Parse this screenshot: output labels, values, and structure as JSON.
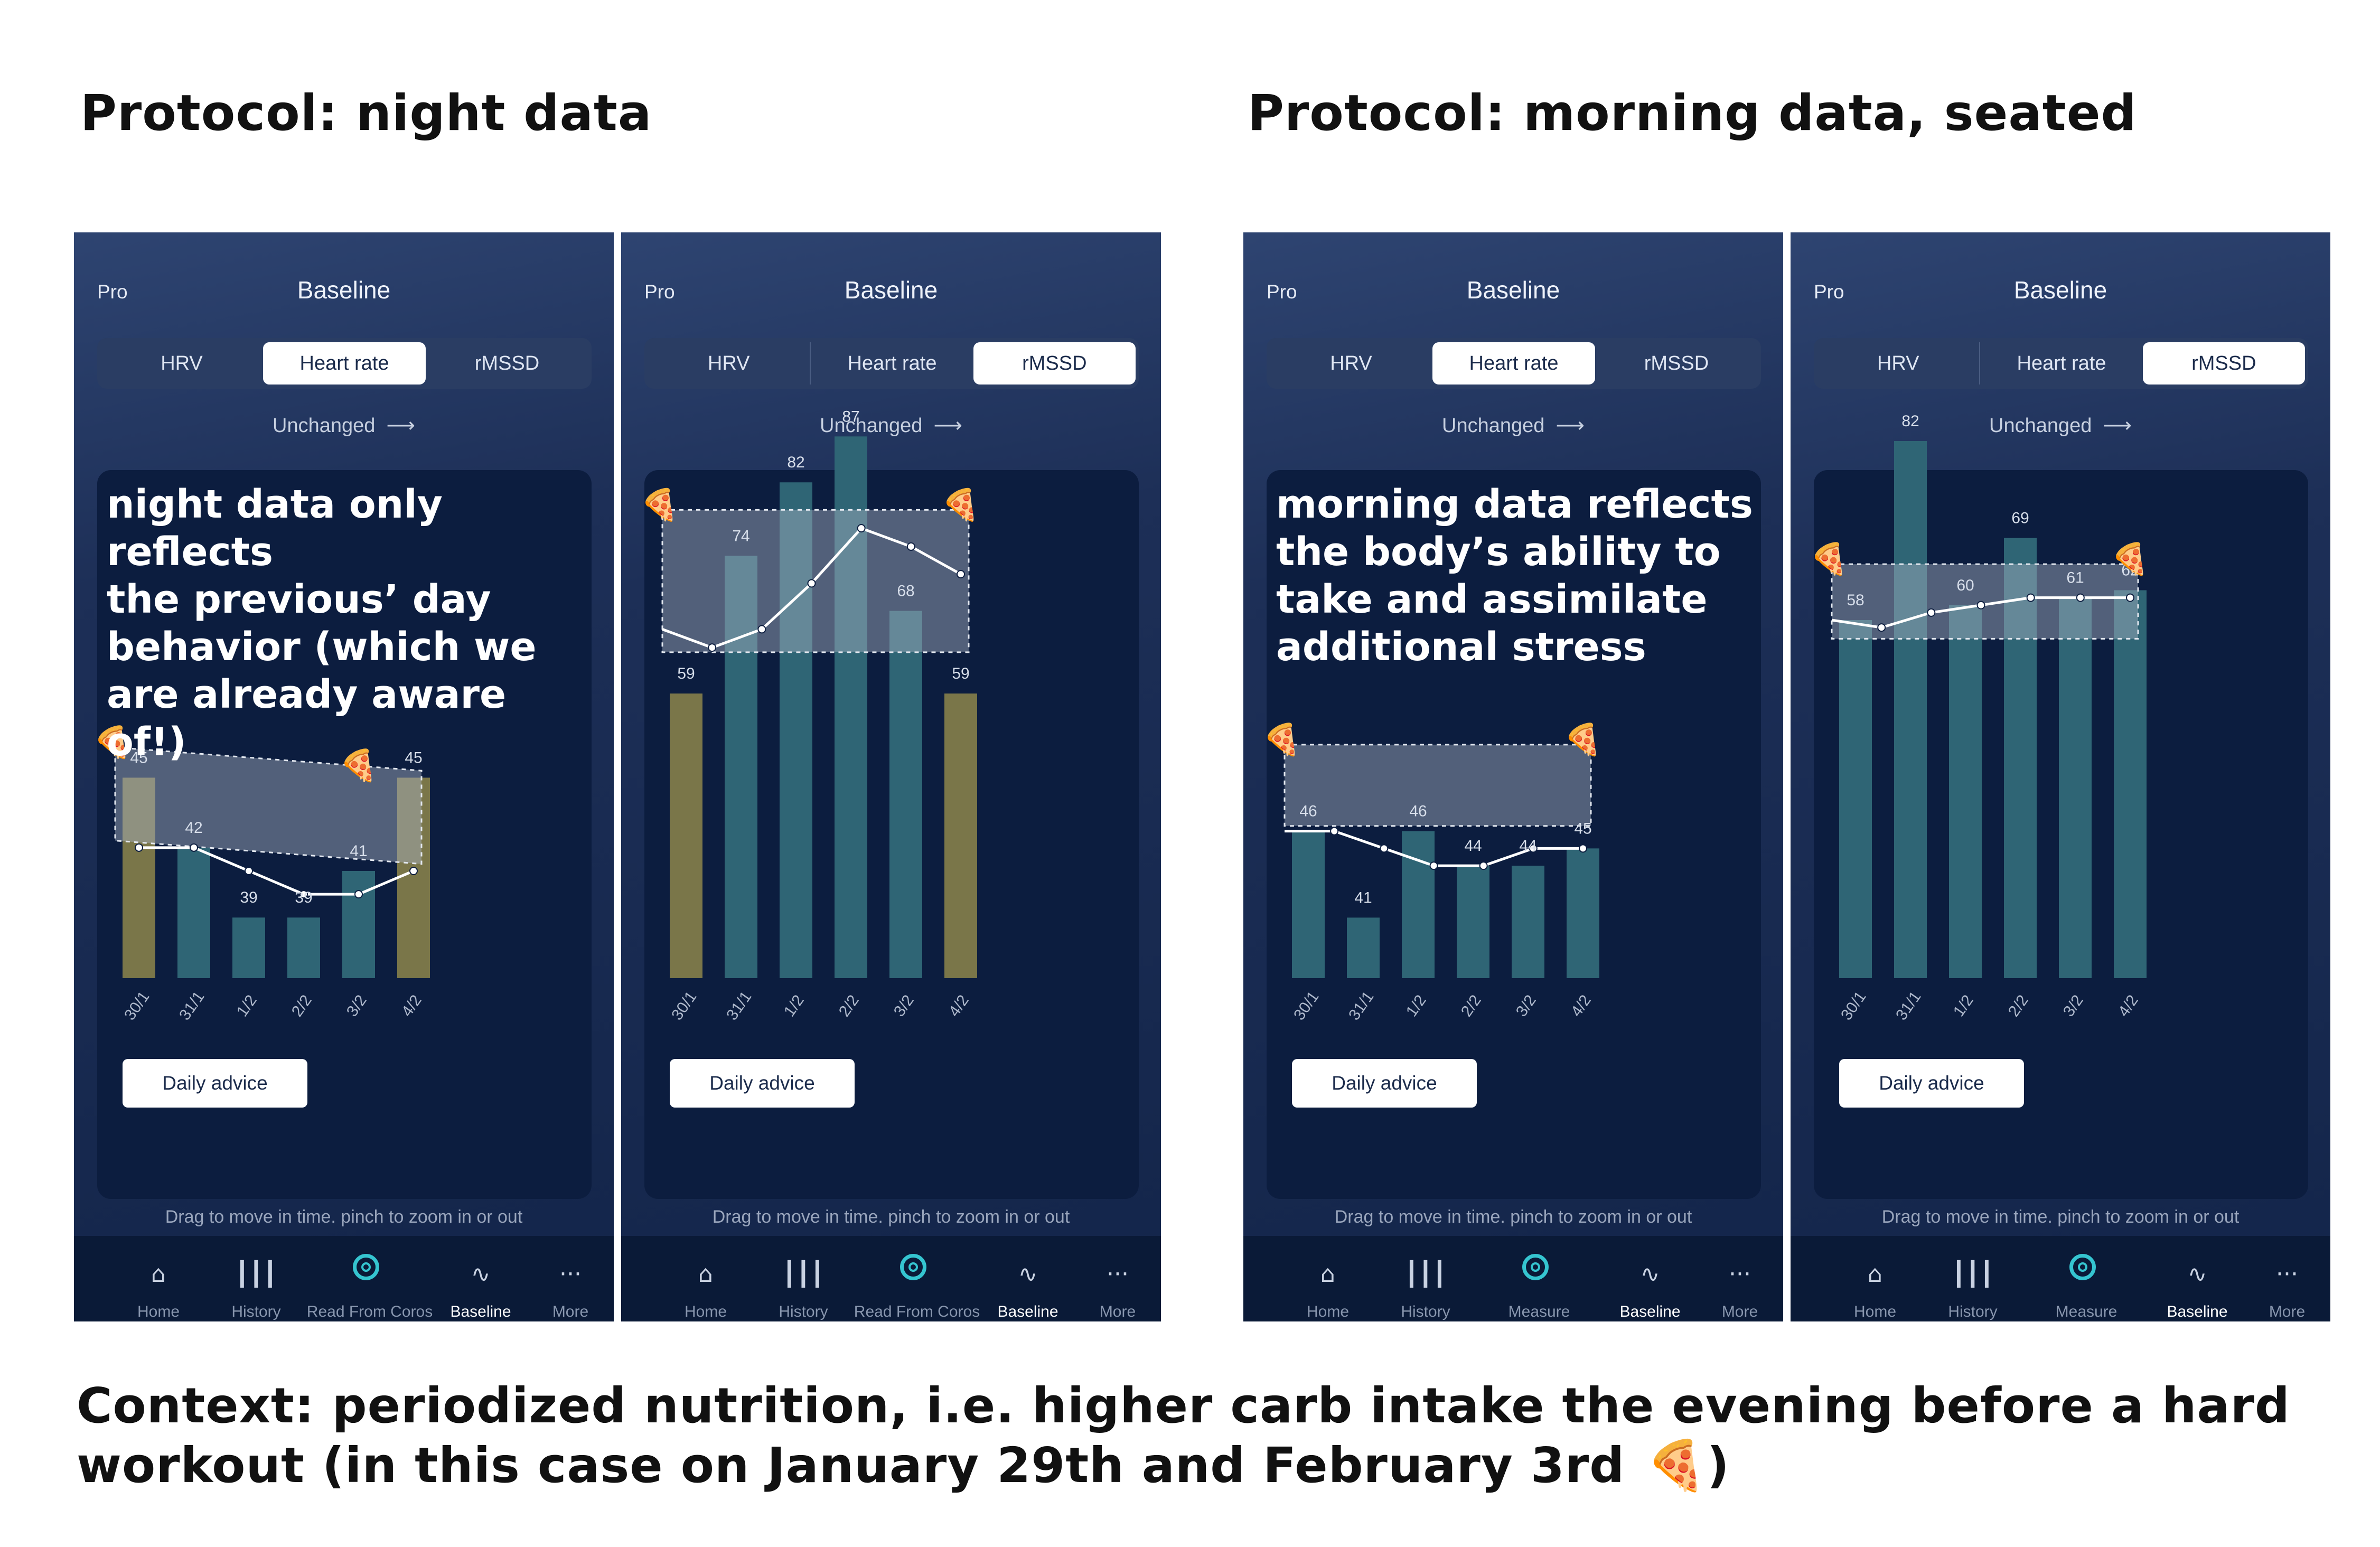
{
  "headings": {
    "left": "Protocol: night data",
    "right": "Protocol: morning data, seated"
  },
  "context": {
    "text": "Context: periodized nutrition, i.e. higher carb intake the evening before a hard workout (in this case on January 29th and February 3rd",
    "icon": "pizza-icon",
    "closing": ")"
  },
  "colors": {
    "background": "#13254a",
    "card": "#0c1d3f",
    "bar_normal": "#2f6575",
    "bar_highlight": "#7a7649",
    "band": "#a9b4c4",
    "accent": "#35c5d0"
  },
  "phones": [
    {
      "pro": "Pro",
      "title": "Baseline",
      "tabs": [
        "HRV",
        "Heart rate",
        "rMSSD"
      ],
      "active_tab": 1,
      "trend": "Unchanged",
      "trend_icon": "arrow-right-icon",
      "overlay": [
        "night data only reflects",
        "the  previous’ day",
        "behavior (which we",
        "are already aware of!)"
      ],
      "advice": "Daily advice",
      "hint": "Drag to move in time. pinch to zoom in or out",
      "nav": [
        "Home",
        "History",
        "Read From Coros",
        "Baseline",
        "More"
      ],
      "active_nav": 3,
      "chart_data": {
        "type": "bar",
        "categories": [
          "30/1",
          "31/1",
          "1/2",
          "2/2",
          "3/2",
          "4/2"
        ],
        "values": [
          45,
          42,
          39,
          39,
          41,
          45
        ],
        "highlight": [
          true,
          false,
          false,
          false,
          false,
          true
        ],
        "value_labels": [
          "45",
          "42",
          "39",
          "39",
          "41",
          "45"
        ],
        "baseline_line": [
          42,
          42,
          41,
          40,
          40,
          41
        ],
        "band_top": [
          46.3,
          45.3
        ],
        "band_bottom": [
          42.3,
          41.3
        ],
        "ylim": [
          36.4,
          62
        ],
        "pizza_markers": [
          0,
          4
        ]
      }
    },
    {
      "pro": "Pro",
      "title": "Baseline",
      "tabs": [
        "HRV",
        "Heart rate",
        "rMSSD"
      ],
      "active_tab": 2,
      "trend": "Unchanged",
      "trend_icon": "arrow-right-icon",
      "overlay": [],
      "advice": "Daily advice",
      "hint": "Drag to move in time. pinch to zoom in or out",
      "nav": [
        "Home",
        "History",
        "Read From Coros",
        "Baseline",
        "More"
      ],
      "active_nav": 3,
      "chart_data": {
        "type": "bar",
        "categories": [
          "30/1",
          "31/1",
          "1/2",
          "2/2",
          "3/2",
          "4/2"
        ],
        "values": [
          59,
          74,
          82,
          87,
          68,
          59
        ],
        "highlight": [
          true,
          false,
          false,
          false,
          false,
          true
        ],
        "value_labels": [
          "59",
          "74",
          "82",
          "87",
          "68",
          "59"
        ],
        "baseline_line": [
          66,
          64,
          66,
          71,
          77,
          75,
          72
        ],
        "band_top": [
          79,
          79
        ],
        "band_bottom": [
          63.5,
          63.5
        ],
        "ylim": [
          28,
          93
        ],
        "pizza_markers": [
          0,
          5
        ]
      }
    },
    {
      "pro": "Pro",
      "title": "Baseline",
      "tabs": [
        "HRV",
        "Heart rate",
        "rMSSD"
      ],
      "active_tab": 1,
      "trend": "Unchanged",
      "trend_icon": "arrow-right-icon",
      "overlay": [
        "morning data reflects",
        "the body’s ability to",
        "take and assimilate",
        "additional stress"
      ],
      "advice": "Daily advice",
      "hint": "Drag to move in time. pinch to zoom in or out",
      "nav": [
        "Home",
        "History",
        "Measure",
        "Baseline",
        "More"
      ],
      "active_nav": 3,
      "chart_data": {
        "type": "bar",
        "categories": [
          "30/1",
          "31/1",
          "1/2",
          "2/2",
          "3/2",
          "4/2"
        ],
        "values": [
          46,
          41,
          46,
          44,
          44,
          45
        ],
        "highlight": [
          false,
          false,
          false,
          false,
          false,
          false
        ],
        "value_labels": [
          "46",
          "41",
          "46",
          "44",
          "44",
          "45"
        ],
        "baseline_line": [
          46,
          46,
          45,
          44,
          44,
          45,
          45
        ],
        "band_top": [
          51,
          51
        ],
        "band_bottom": [
          46.3,
          46.3
        ],
        "ylim": [
          37.5,
          72
        ],
        "pizza_markers": [
          0,
          5
        ]
      }
    },
    {
      "pro": "Pro",
      "title": "Baseline",
      "tabs": [
        "HRV",
        "Heart rate",
        "rMSSD"
      ],
      "active_tab": 2,
      "trend": "Unchanged",
      "trend_icon": "arrow-right-icon",
      "overlay": [],
      "advice": "Daily advice",
      "hint": "Drag to move in time. pinch to zoom in or out",
      "nav": [
        "Home",
        "History",
        "Measure",
        "Baseline",
        "More"
      ],
      "active_nav": 3,
      "chart_data": {
        "type": "bar",
        "categories": [
          "30/1",
          "31/1",
          "1/2",
          "2/2",
          "3/2",
          "4/2"
        ],
        "values": [
          58,
          82,
          60,
          69,
          61,
          62
        ],
        "highlight": [
          false,
          false,
          false,
          false,
          false,
          false
        ],
        "value_labels": [
          "58",
          "82",
          "60",
          "69",
          "61",
          "62"
        ],
        "baseline_line": [
          58,
          57,
          59,
          60,
          61,
          61,
          61
        ],
        "band_top": [
          65.5,
          65.5
        ],
        "band_bottom": [
          55.5,
          55.5
        ],
        "ylim": [
          10,
          90
        ],
        "pizza_markers": [
          0,
          5
        ]
      }
    }
  ]
}
